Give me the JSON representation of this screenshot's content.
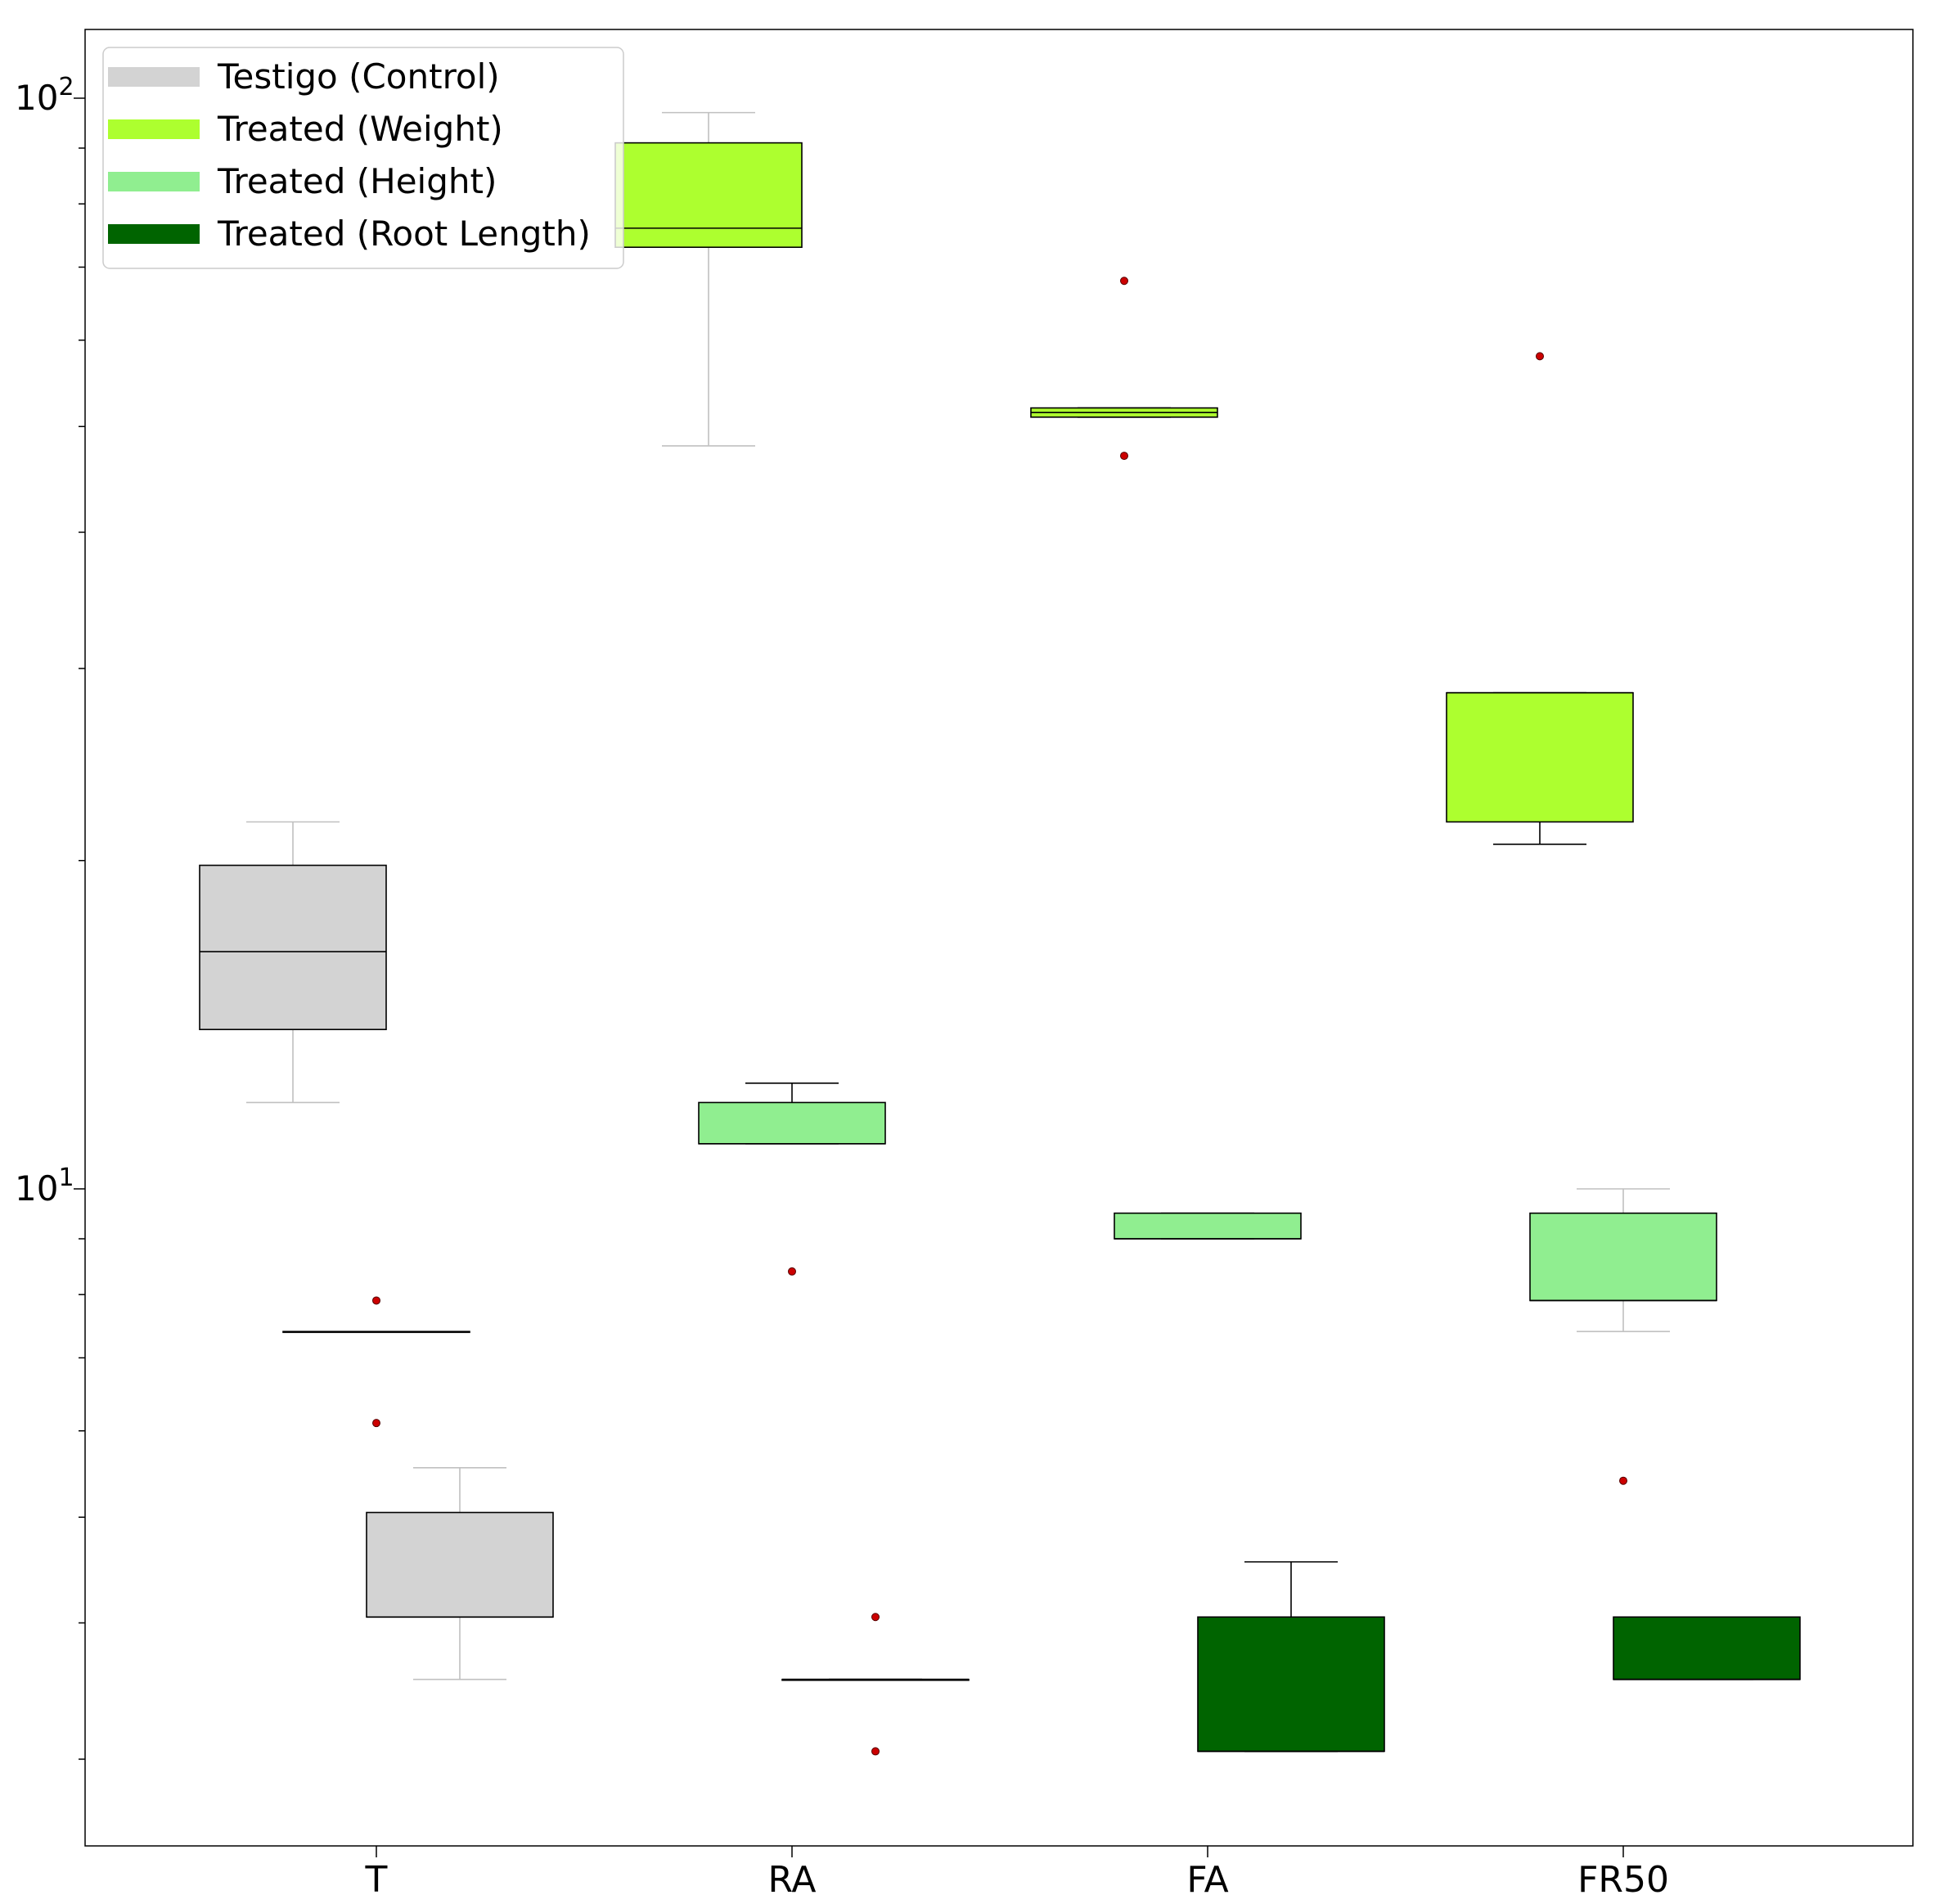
{
  "chart_data": {
    "type": "box",
    "title": "",
    "xlabel": "",
    "ylabel": "",
    "yscale": "log",
    "ylim": [
      2.3,
      120
    ],
    "y_ticks": [
      {
        "value": 10,
        "base": "10",
        "exp": "1"
      },
      {
        "value": 100,
        "base": "10",
        "exp": "2"
      }
    ],
    "categories": [
      "T",
      "RA",
      "FA",
      "FR50"
    ],
    "grid": false,
    "legend_position": "top-left",
    "series": [
      {
        "name": "Testigo (Control)",
        "color": "#d3d3d3",
        "boxes": [
          {
            "category": "T",
            "whislo": 12,
            "q1": 14,
            "med": 16.5,
            "q3": 19.8,
            "whishi": 21.7,
            "fliers": []
          },
          {
            "category": "T",
            "whislo": 3.55,
            "q1": 4.05,
            "med": 4.05,
            "q3": 5.05,
            "whishi": 5.55,
            "fliers": []
          }
        ]
      },
      {
        "name": "Treated (Weight)",
        "color": "#adff2f",
        "boxes": [
          {
            "category": "RA",
            "whislo": 48,
            "q1": 73,
            "med": 76,
            "q3": 91,
            "whishi": 97,
            "fliers": []
          },
          {
            "category": "FA",
            "whislo": 51,
            "q1": 51,
            "med": 51.5,
            "q3": 52,
            "whishi": 52,
            "fliers": [
              68,
              47
            ]
          },
          {
            "category": "FR50",
            "whislo": 20.7,
            "q1": 21.7,
            "med": 28.5,
            "q3": 28.5,
            "whishi": 28.5,
            "fliers": [
              58
            ]
          }
        ]
      },
      {
        "name": "Treated (Height)",
        "color": "#90ee90",
        "boxes": [
          {
            "category": "T",
            "whislo": 7.4,
            "q1": 7.4,
            "med": 7.4,
            "q3": 7.4,
            "whishi": 7.4,
            "fliers": [
              7.9,
              6.1
            ]
          },
          {
            "category": "RA",
            "whislo": 11,
            "q1": 11,
            "med": 11,
            "q3": 12,
            "whishi": 12.5,
            "fliers": [
              8.4
            ]
          },
          {
            "category": "FA",
            "whislo": 9,
            "q1": 9,
            "med": 9,
            "q3": 9.5,
            "whishi": 9.5,
            "fliers": []
          },
          {
            "category": "FR50",
            "whislo": 7.4,
            "q1": 7.9,
            "med": 7.9,
            "q3": 9.5,
            "whishi": 10,
            "fliers": [
              5.4
            ]
          }
        ]
      },
      {
        "name": "Treated (Root Length)",
        "color": "#006400",
        "boxes": [
          {
            "category": "RA",
            "whislo": 3.55,
            "q1": 3.55,
            "med": 3.55,
            "q3": 3.55,
            "whishi": 3.55,
            "fliers": [
              4.05,
              3.05
            ]
          },
          {
            "category": "FA",
            "whislo": 3.05,
            "q1": 3.05,
            "med": 3.05,
            "q3": 4.05,
            "whishi": 4.55,
            "fliers": []
          },
          {
            "category": "FR50",
            "whislo": 3.55,
            "q1": 3.55,
            "med": 3.55,
            "q3": 4.05,
            "whishi": 4.05,
            "fliers": []
          }
        ]
      }
    ]
  }
}
